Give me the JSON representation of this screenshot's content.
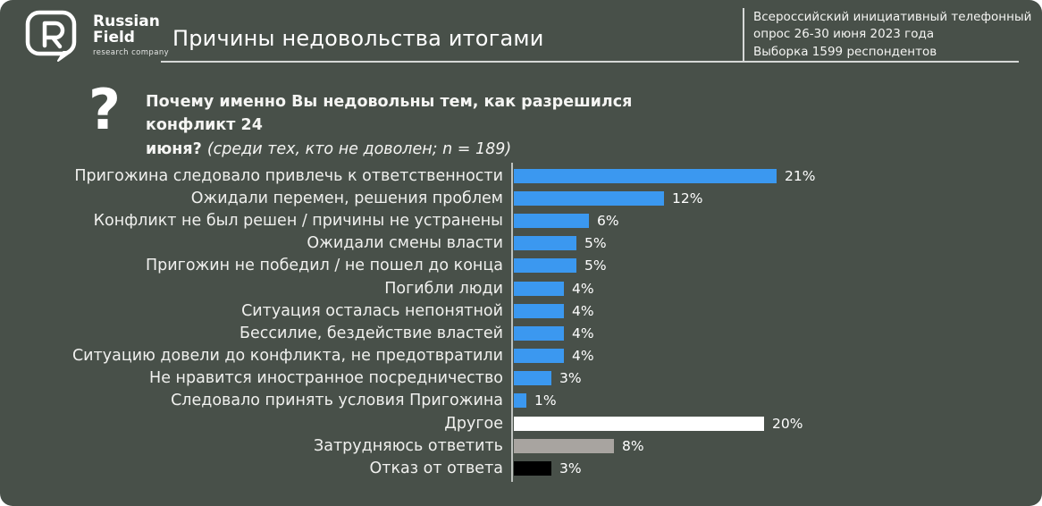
{
  "header": {
    "logo": {
      "line1": "Russian",
      "line2": "Field",
      "subtitle": "research company"
    },
    "title": "Причины недовольства итогами",
    "survey_info_lines": [
      "Всероссийский инициативный телефонный",
      "опрос 26-30 июня 2023 года",
      "Выборка 1599 респондентов"
    ]
  },
  "question": {
    "icon": "?",
    "bold_line1": "Почему именно Вы недовольны тем, как разрешился конфликт 24",
    "bold_line2": "июня?",
    "note": "(среди тех, кто не доволен; n = 189)"
  },
  "chart_data": {
    "type": "bar",
    "orientation": "horizontal",
    "unit": "%",
    "xlim": [
      0,
      23
    ],
    "grid": false,
    "legend": false,
    "categories": [
      "Пригожина следовало привлечь к ответственности",
      "Ожидали перемен, решения проблем",
      "Конфликт не был решен / причины не устранены",
      "Ожидали смены власти",
      "Пригожин не победил / не пошел до конца",
      "Погибли люди",
      "Ситуация осталась непонятной",
      "Бессилие, бездействие властей",
      "Ситуацию довели до конфликта, не предотвратили",
      "Не нравится иностранное посредничество",
      "Следовало принять условия Пригожина",
      "Другое",
      "Затрудняюсь ответить",
      "Отказ от ответа"
    ],
    "values": [
      21,
      12,
      6,
      5,
      5,
      4,
      4,
      4,
      4,
      3,
      1,
      20,
      8,
      3
    ],
    "bar_colors": [
      "#3b98f0",
      "#3b98f0",
      "#3b98f0",
      "#3b98f0",
      "#3b98f0",
      "#3b98f0",
      "#3b98f0",
      "#3b98f0",
      "#3b98f0",
      "#3b98f0",
      "#3b98f0",
      "#ffffff",
      "#a8a4a0",
      "#000000"
    ],
    "colors_legend": {
      "answer": "#3b98f0",
      "other": "#ffffff",
      "hard_to_answer": "#a8a4a0",
      "refused": "#000000"
    }
  }
}
